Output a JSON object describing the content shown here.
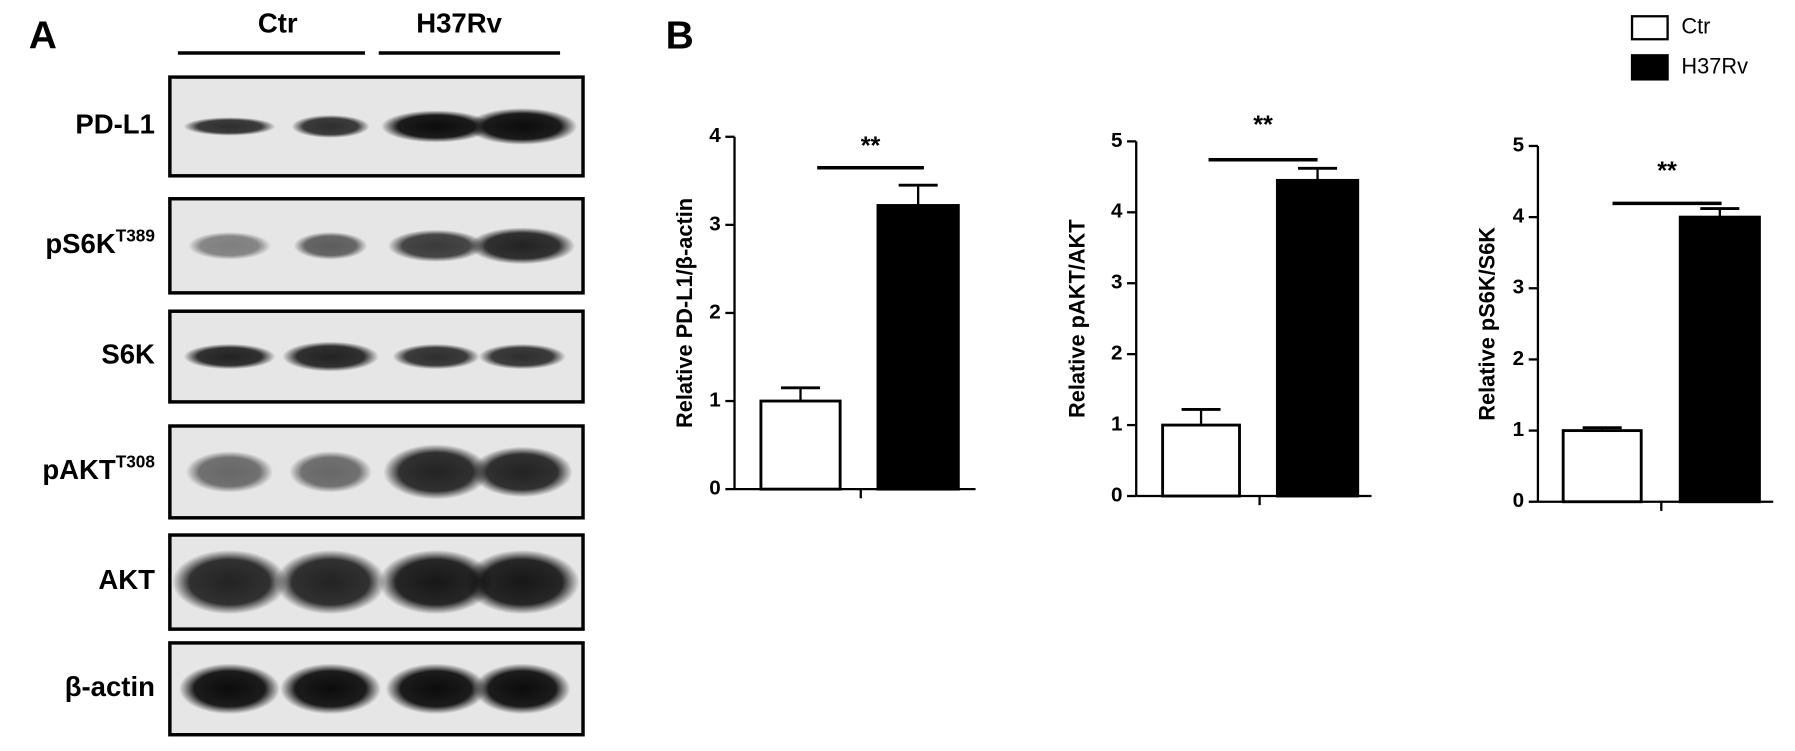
{
  "panel_a": {
    "label": "A",
    "groups": [
      "Ctr",
      "H37Rv"
    ],
    "rows": [
      {
        "label": "PD-L1"
      },
      {
        "label": "pS6K",
        "sup": "T389"
      },
      {
        "label": "S6K"
      },
      {
        "label": "pAKT",
        "sup": "T308"
      },
      {
        "label": "AKT"
      },
      {
        "label": "β-actin"
      }
    ]
  },
  "panel_b": {
    "label": "B",
    "legend": [
      {
        "name": "Ctr",
        "color": "#ffffff"
      },
      {
        "name": "H37Rv",
        "color": "#000000"
      }
    ]
  },
  "chart_data": [
    {
      "type": "bar",
      "y_label": "Relative PD-L1/β-actin",
      "values": [
        1.0,
        3.22
      ],
      "errors": [
        0.15,
        0.23
      ],
      "annotation": "**",
      "ylim": [
        0,
        4
      ],
      "yticks": [
        0,
        1,
        2,
        3,
        4
      ]
    },
    {
      "type": "bar",
      "y_label": "Relative pAKT/AKT",
      "values": [
        1.0,
        4.45
      ],
      "errors": [
        0.22,
        0.17
      ],
      "annotation": "**",
      "ylim": [
        0,
        5
      ],
      "yticks": [
        0,
        1,
        2,
        3,
        4,
        5
      ]
    },
    {
      "type": "bar",
      "y_label": "Relative pS6K/S6K",
      "values": [
        1.0,
        4.0
      ],
      "errors": [
        0.04,
        0.12
      ],
      "annotation": "**",
      "ylim": [
        0,
        5
      ],
      "yticks": [
        0,
        1,
        2,
        3,
        4,
        5
      ]
    }
  ]
}
